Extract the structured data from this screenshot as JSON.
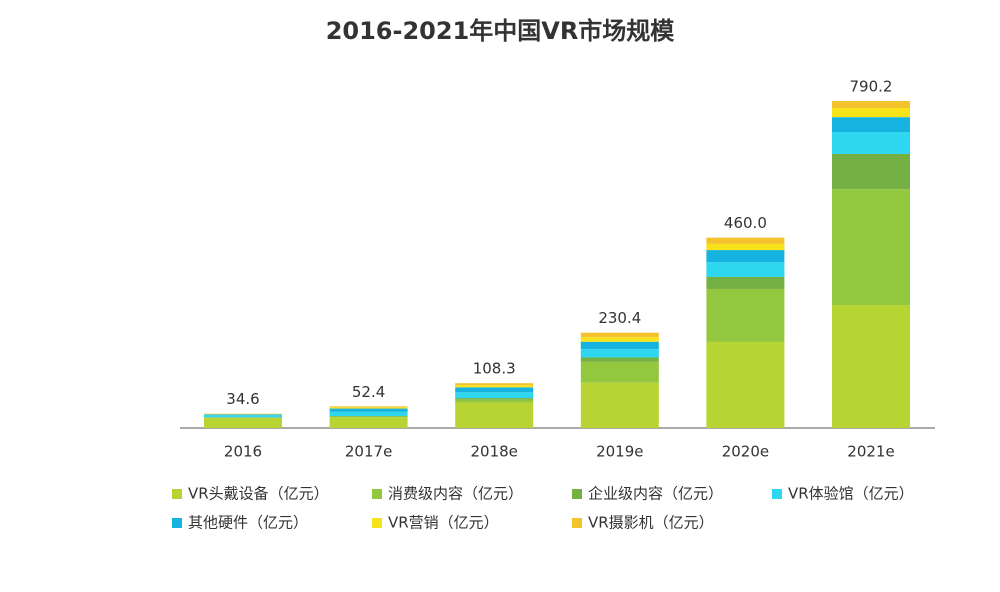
{
  "chart_data": {
    "type": "stacked_bar",
    "title": "2016-2021年中国VR市场规模",
    "categories": [
      "2016",
      "2017e",
      "2018e",
      "2019e",
      "2020e",
      "2021e"
    ],
    "series": [
      {
        "name": "VR头戴设备（亿元）",
        "color": "#b7d433",
        "values": [
          24,
          26,
          61.3,
          109.4,
          208,
          297
        ]
      },
      {
        "name": "消费级内容（亿元）",
        "color": "#93c83e",
        "values": [
          1,
          2,
          7,
          51,
          128,
          280
        ]
      },
      {
        "name": "企业级内容（亿元）",
        "color": "#74b043",
        "values": [
          1,
          1,
          4,
          10,
          29,
          85.2
        ]
      },
      {
        "name": "VR体验馆（亿元）",
        "color": "#2fd6ef",
        "values": [
          5,
          10,
          14,
          20,
          36,
          53
        ]
      },
      {
        "name": "其他硬件（亿元）",
        "color": "#16b3e0",
        "values": [
          2,
          8,
          12,
          18,
          29,
          36
        ]
      },
      {
        "name": "VR营销（亿元）",
        "color": "#f6e31a",
        "values": [
          1,
          3,
          5,
          11,
          15,
          22
        ]
      },
      {
        "name": "VR摄影机（亿元）",
        "color": "#f4c22c",
        "values": [
          0.6,
          2.4,
          5,
          11,
          15,
          17
        ]
      }
    ],
    "totals": [
      34.6,
      52.4,
      108.3,
      230.4,
      460,
      790.2
    ],
    "total_labels": [
      "34.6",
      "52.4",
      "108.3",
      "230.4",
      "460.0",
      "790.2"
    ]
  }
}
